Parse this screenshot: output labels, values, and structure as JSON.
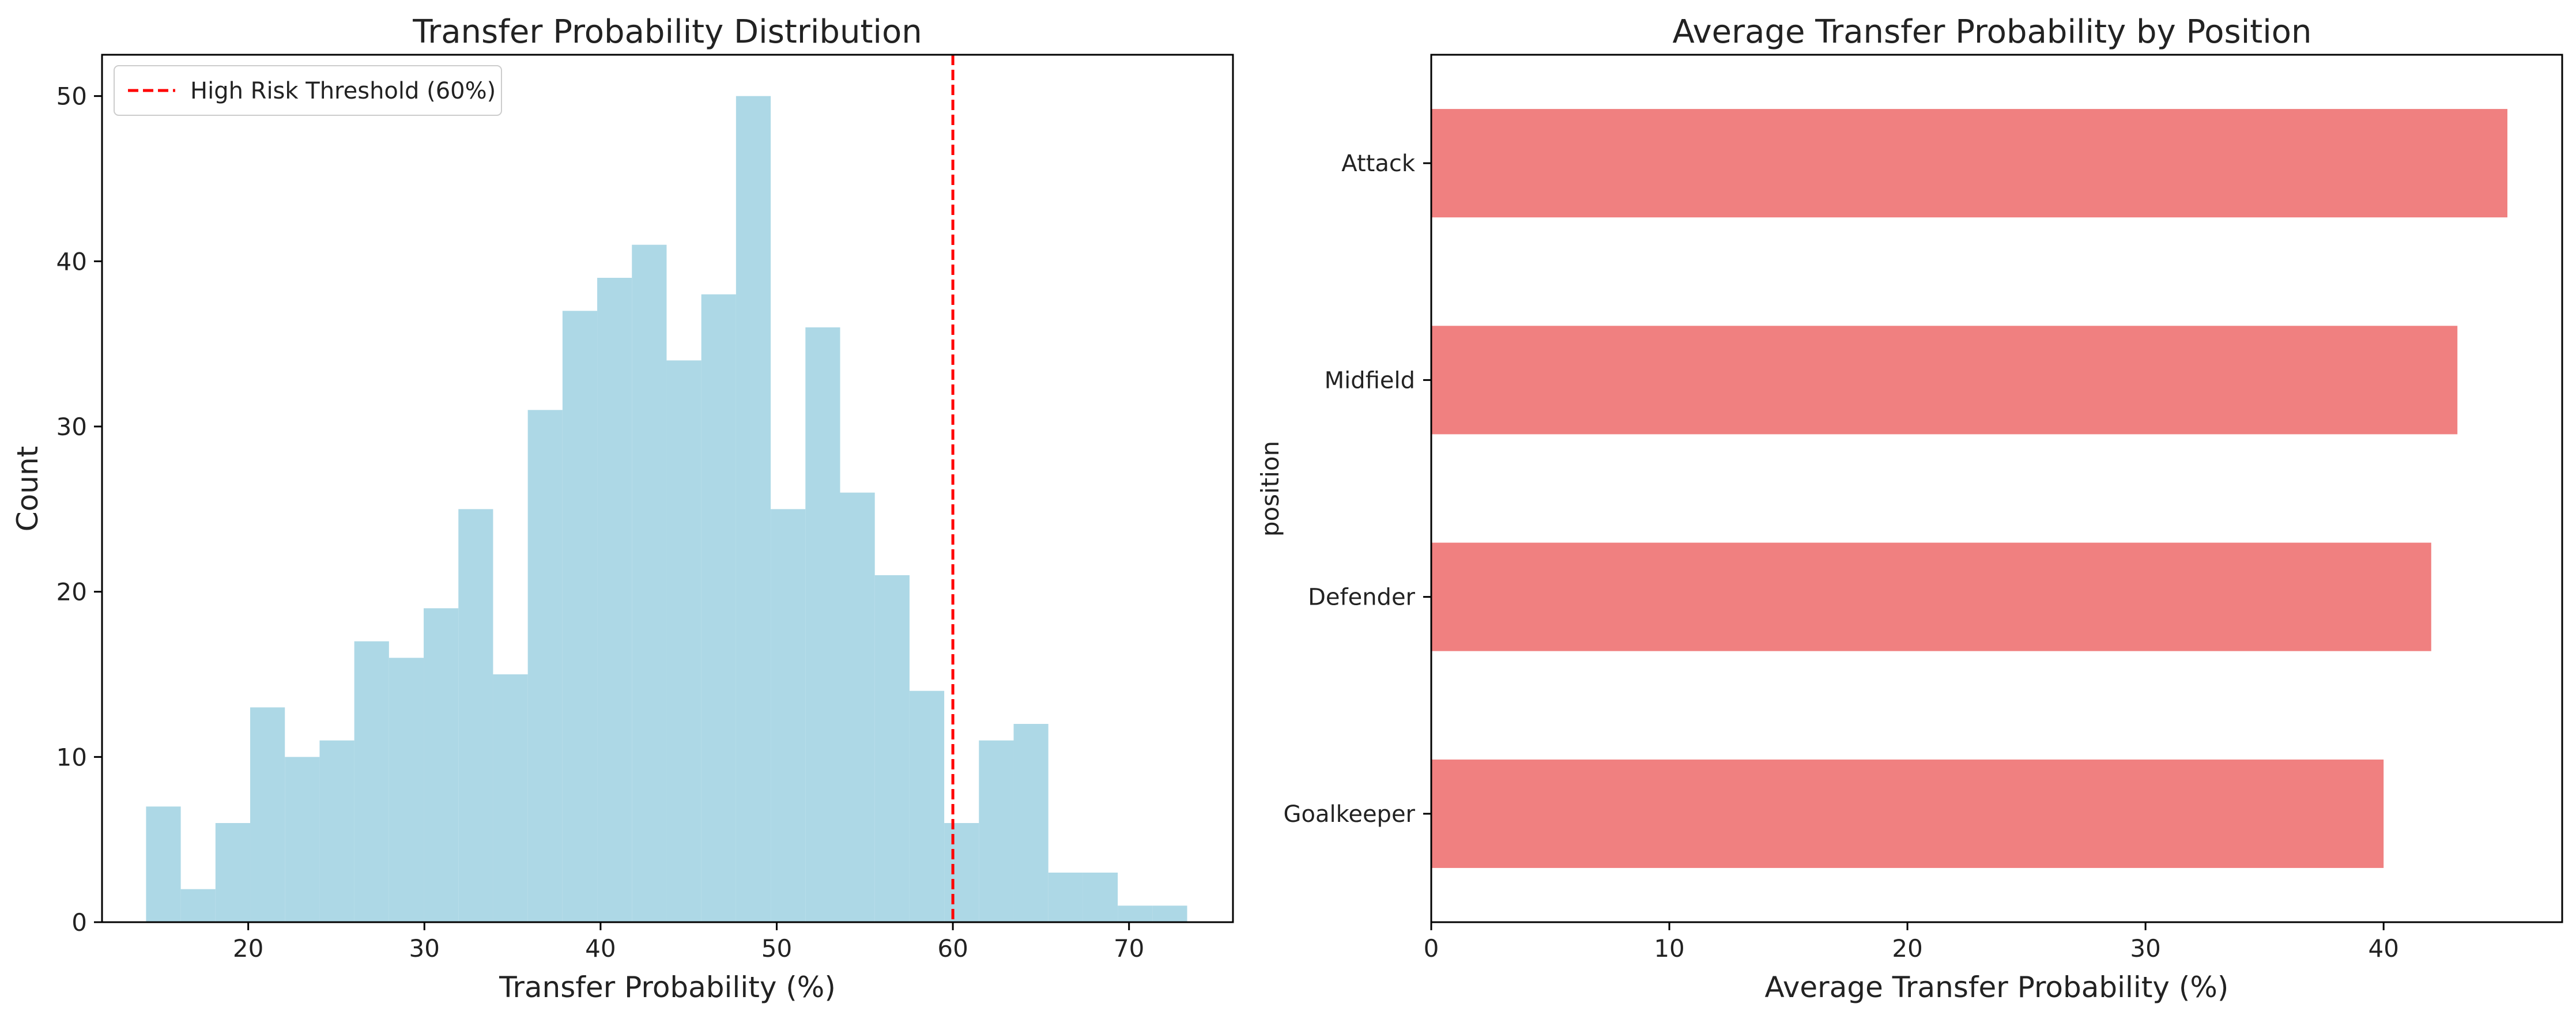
{
  "chart_data": [
    {
      "type": "histogram",
      "title": "Transfer Probability Distribution",
      "xlabel": "Transfer Probability (%)",
      "ylabel": "Count",
      "xlim": [
        11.7,
        75.9
      ],
      "ylim": [
        0,
        52.5
      ],
      "xticks": [
        20,
        30,
        40,
        50,
        60,
        70
      ],
      "yticks": [
        0,
        10,
        20,
        30,
        40,
        50
      ],
      "bin_start": 14.2,
      "bin_width": 1.97,
      "counts": [
        7,
        2,
        6,
        13,
        10,
        11,
        17,
        16,
        19,
        25,
        15,
        31,
        37,
        39,
        41,
        34,
        38,
        50,
        25,
        36,
        26,
        21,
        14,
        6,
        11,
        12,
        3,
        3,
        1,
        1
      ],
      "bar_color": "#add8e6",
      "threshold": {
        "value": 60,
        "label": "High Risk Threshold (60%)",
        "color": "#ff0000",
        "style": "dashed"
      },
      "legend": {
        "placement": "upper-left"
      },
      "grid": false
    },
    {
      "type": "barh",
      "title": "Average Transfer Probability by Position",
      "xlabel": "Average Transfer Probability (%)",
      "ylabel": "position",
      "xlim": [
        0,
        47.5
      ],
      "xticks": [
        0,
        10,
        20,
        30,
        40
      ],
      "categories": [
        "Attack",
        "Midfield",
        "Defender",
        "Goalkeeper"
      ],
      "values": [
        45.2,
        43.1,
        42.0,
        40.0
      ],
      "bar_color": "#f08080",
      "grid": false
    }
  ]
}
